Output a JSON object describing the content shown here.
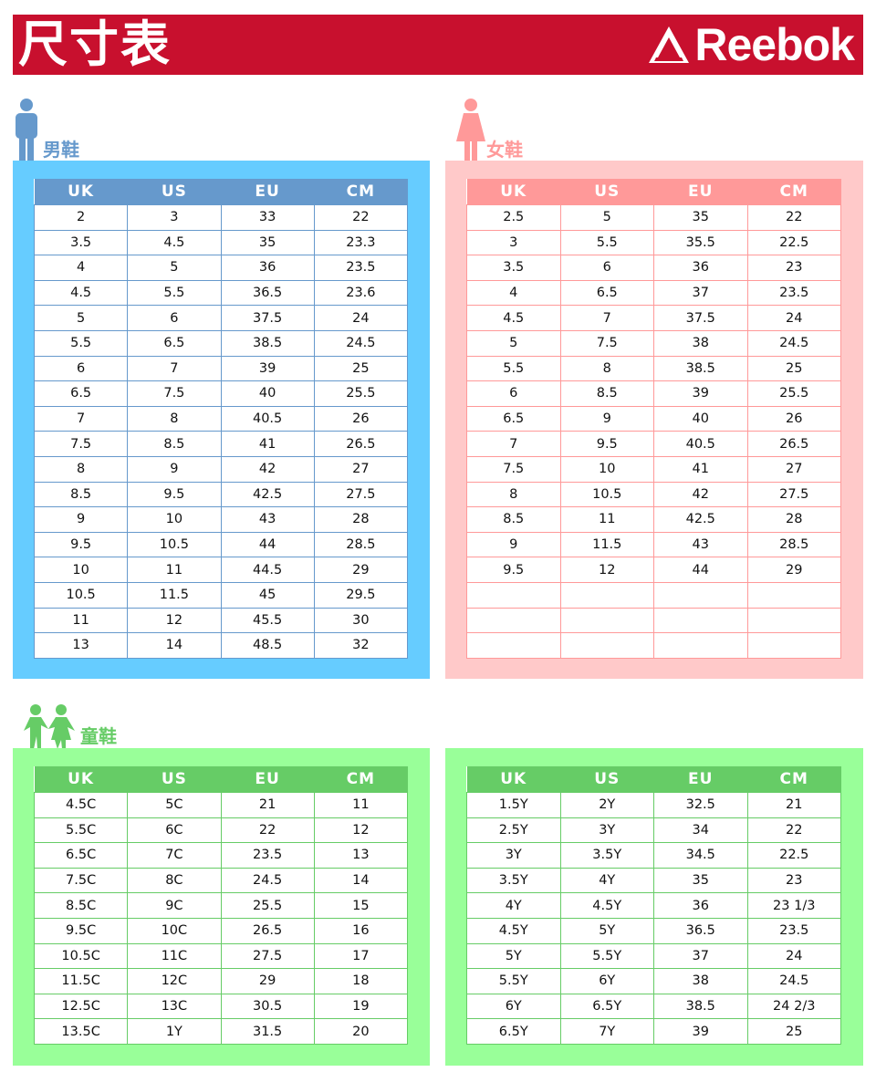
{
  "header": {
    "title": "尺寸表",
    "brand": "Reebok"
  },
  "colors": {
    "banner": "#c8102e",
    "men": "#66ccff",
    "men_header": "#6699cc",
    "women": "#ffc9c9",
    "women_header": "#ff9999",
    "kids": "#99ff99",
    "kids_header": "#66cc66"
  },
  "columns": [
    "UK",
    "US",
    "EU",
    "CM"
  ],
  "men": {
    "label": "男鞋",
    "rows": [
      [
        "2",
        "3",
        "33",
        "22"
      ],
      [
        "3.5",
        "4.5",
        "35",
        "23.3"
      ],
      [
        "4",
        "5",
        "36",
        "23.5"
      ],
      [
        "4.5",
        "5.5",
        "36.5",
        "23.6"
      ],
      [
        "5",
        "6",
        "37.5",
        "24"
      ],
      [
        "5.5",
        "6.5",
        "38.5",
        "24.5"
      ],
      [
        "6",
        "7",
        "39",
        "25"
      ],
      [
        "6.5",
        "7.5",
        "40",
        "25.5"
      ],
      [
        "7",
        "8",
        "40.5",
        "26"
      ],
      [
        "7.5",
        "8.5",
        "41",
        "26.5"
      ],
      [
        "8",
        "9",
        "42",
        "27"
      ],
      [
        "8.5",
        "9.5",
        "42.5",
        "27.5"
      ],
      [
        "9",
        "10",
        "43",
        "28"
      ],
      [
        "9.5",
        "10.5",
        "44",
        "28.5"
      ],
      [
        "10",
        "11",
        "44.5",
        "29"
      ],
      [
        "10.5",
        "11.5",
        "45",
        "29.5"
      ],
      [
        "11",
        "12",
        "45.5",
        "30"
      ],
      [
        "13",
        "14",
        "48.5",
        "32"
      ]
    ]
  },
  "women": {
    "label": "女鞋",
    "rows": [
      [
        "2.5",
        "5",
        "35",
        "22"
      ],
      [
        "3",
        "5.5",
        "35.5",
        "22.5"
      ],
      [
        "3.5",
        "6",
        "36",
        "23"
      ],
      [
        "4",
        "6.5",
        "37",
        "23.5"
      ],
      [
        "4.5",
        "7",
        "37.5",
        "24"
      ],
      [
        "5",
        "7.5",
        "38",
        "24.5"
      ],
      [
        "5.5",
        "8",
        "38.5",
        "25"
      ],
      [
        "6",
        "8.5",
        "39",
        "25.5"
      ],
      [
        "6.5",
        "9",
        "40",
        "26"
      ],
      [
        "7",
        "9.5",
        "40.5",
        "26.5"
      ],
      [
        "7.5",
        "10",
        "41",
        "27"
      ],
      [
        "8",
        "10.5",
        "42",
        "27.5"
      ],
      [
        "8.5",
        "11",
        "42.5",
        "28"
      ],
      [
        "9",
        "11.5",
        "43",
        "28.5"
      ],
      [
        "9.5",
        "12",
        "44",
        "29"
      ]
    ]
  },
  "kids": {
    "label": "童鞋",
    "small": [
      [
        "4.5C",
        "5C",
        "21",
        "11"
      ],
      [
        "5.5C",
        "6C",
        "22",
        "12"
      ],
      [
        "6.5C",
        "7C",
        "23.5",
        "13"
      ],
      [
        "7.5C",
        "8C",
        "24.5",
        "14"
      ],
      [
        "8.5C",
        "9C",
        "25.5",
        "15"
      ],
      [
        "9.5C",
        "10C",
        "26.5",
        "16"
      ],
      [
        "10.5C",
        "11C",
        "27.5",
        "17"
      ],
      [
        "11.5C",
        "12C",
        "29",
        "18"
      ],
      [
        "12.5C",
        "13C",
        "30.5",
        "19"
      ],
      [
        "13.5C",
        "1Y",
        "31.5",
        "20"
      ]
    ],
    "youth": [
      [
        "1.5Y",
        "2Y",
        "32.5",
        "21"
      ],
      [
        "2.5Y",
        "3Y",
        "34",
        "22"
      ],
      [
        "3Y",
        "3.5Y",
        "34.5",
        "22.5"
      ],
      [
        "3.5Y",
        "4Y",
        "35",
        "23"
      ],
      [
        "4Y",
        "4.5Y",
        "36",
        "23 1/3"
      ],
      [
        "4.5Y",
        "5Y",
        "36.5",
        "23.5"
      ],
      [
        "5Y",
        "5.5Y",
        "37",
        "24"
      ],
      [
        "5.5Y",
        "6Y",
        "38",
        "24.5"
      ],
      [
        "6Y",
        "6.5Y",
        "38.5",
        "24 2/3"
      ],
      [
        "6.5Y",
        "7Y",
        "39",
        "25"
      ]
    ]
  }
}
